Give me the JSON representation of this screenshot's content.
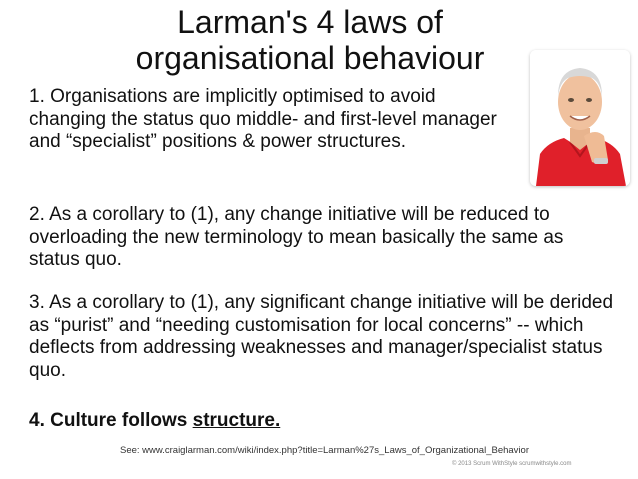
{
  "title": {
    "line1": "Larman's 4 laws of",
    "line2": "organisational behaviour"
  },
  "photo": {
    "icon": "portrait-photo",
    "shirt_color": "#e0202a",
    "background_color": "#ffffff"
  },
  "laws": [
    {
      "text": "1. Organisations are implicitly optimised to avoid changing the status quo middle- and first-level manager and “specialist” positions & power structures."
    },
    {
      "text": "2. As a corollary to (1), any change initiative will be reduced to overloading the new terminology to mean basically the same as status quo."
    },
    {
      "text": "3. As a corollary to (1), any significant change initiative will be derided as “purist” and “needing customisation for local concerns” -- which deflects from addressing weaknesses and manager/specialist status quo."
    },
    {
      "prefix": "4. Culture follows ",
      "emphasis": "structure."
    }
  ],
  "footer": {
    "see": "See: www.craiglarman.com/wiki/index.php?title=Larman%27s_Laws_of_Organizational_Behavior",
    "copyright": "© 2013 Scrum WithStyle scrumwithstyle.com"
  }
}
